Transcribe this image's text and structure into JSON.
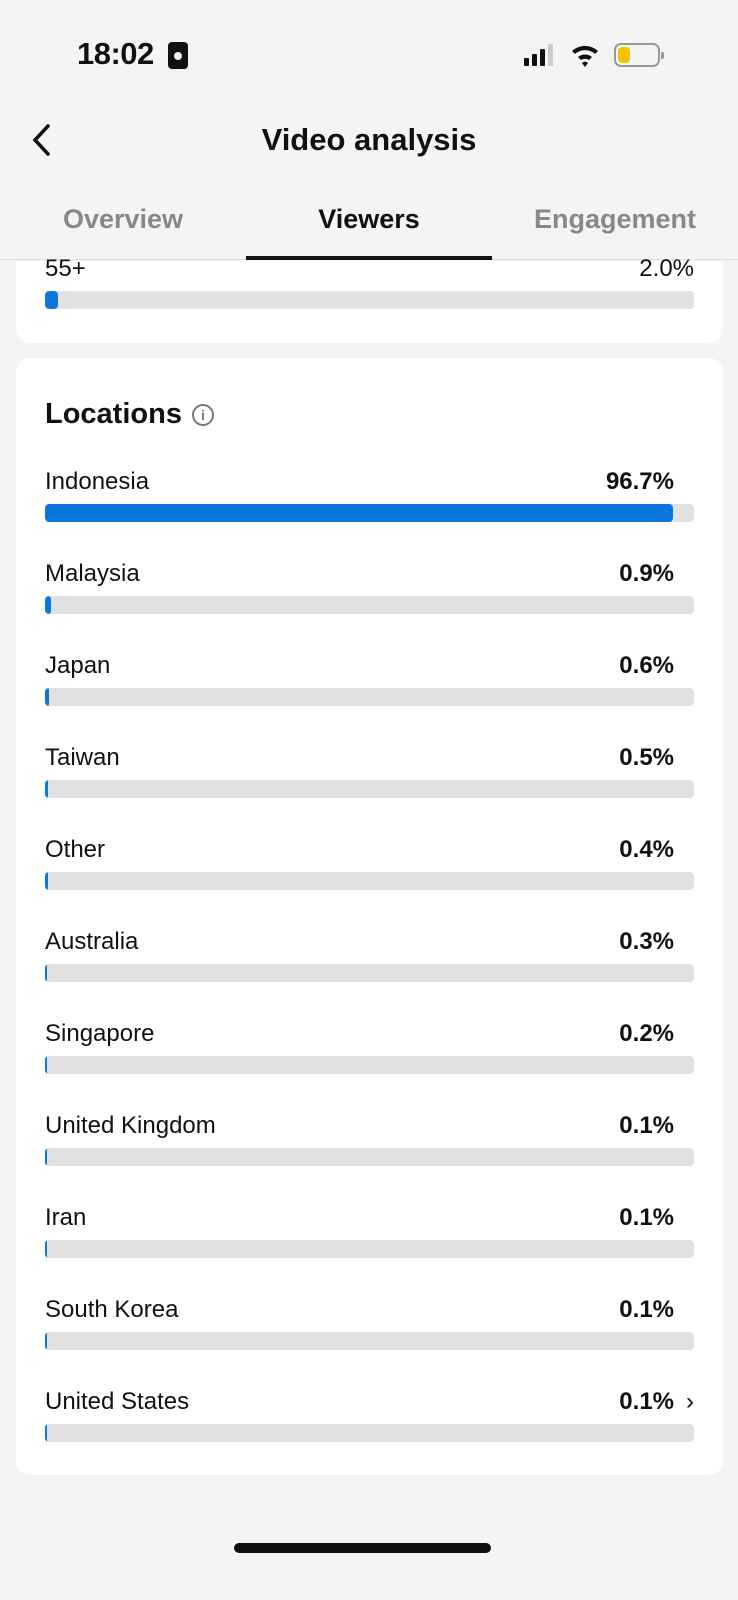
{
  "status_bar": {
    "time": "18:02"
  },
  "header": {
    "title": "Video analysis"
  },
  "tabs": [
    {
      "label": "Overview",
      "active": false
    },
    {
      "label": "Viewers",
      "active": true
    },
    {
      "label": "Engagement",
      "active": false
    }
  ],
  "age": {
    "label": "55+",
    "percent_text": "2.0%",
    "value": 2.0
  },
  "locations": {
    "title": "Locations",
    "accent": "#0b76db",
    "items": [
      {
        "label": "Indonesia",
        "percent_text": "96.7%",
        "value": 96.7
      },
      {
        "label": "Malaysia",
        "percent_text": "0.9%",
        "value": 0.9
      },
      {
        "label": "Japan",
        "percent_text": "0.6%",
        "value": 0.6
      },
      {
        "label": "Taiwan",
        "percent_text": "0.5%",
        "value": 0.5
      },
      {
        "label": "Other",
        "percent_text": "0.4%",
        "value": 0.4
      },
      {
        "label": "Australia",
        "percent_text": "0.3%",
        "value": 0.3
      },
      {
        "label": "Singapore",
        "percent_text": "0.2%",
        "value": 0.2
      },
      {
        "label": "United Kingdom",
        "percent_text": "0.1%",
        "value": 0.1
      },
      {
        "label": "Iran",
        "percent_text": "0.1%",
        "value": 0.1
      },
      {
        "label": "South Korea",
        "percent_text": "0.1%",
        "value": 0.1
      },
      {
        "label": "United States",
        "percent_text": "0.1%",
        "value": 0.1
      }
    ]
  }
}
